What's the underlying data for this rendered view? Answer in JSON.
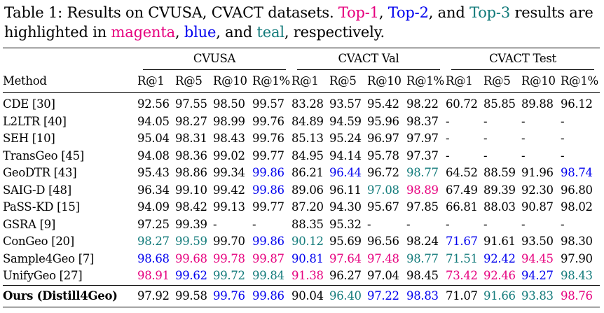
{
  "caption": {
    "prefix": "Table 1: Results on CVUSA, CVACT datasets.",
    "top1": "Top-1",
    "sep1": ",",
    "top2": "Top-2",
    "sep2": ", and",
    "top3": "Top-3",
    "mid": "results are highlighted in",
    "w_magenta": "magenta",
    "sep3": ",",
    "w_blue": "blue",
    "sep4": ", and",
    "w_teal": "teal",
    "suffix": ", respectively."
  },
  "colors": {
    "magenta": "#e6007e",
    "blue": "#0000ee",
    "teal": "#137b7b"
  },
  "groups": [
    "CVUSA",
    "CVACT Val",
    "CVACT Test"
  ],
  "columns": [
    "Method",
    "R@1",
    "R@5",
    "R@10",
    "R@1%",
    "R@1",
    "R@5",
    "R@10",
    "R@1%",
    "R@1",
    "R@5",
    "R@10",
    "R@1%"
  ],
  "rows": [
    {
      "method": "CDE [30]",
      "cells": [
        {
          "v": "92.56"
        },
        {
          "v": "97.55"
        },
        {
          "v": "98.50"
        },
        {
          "v": "99.57"
        },
        {
          "v": "83.28"
        },
        {
          "v": "93.57"
        },
        {
          "v": "95.42"
        },
        {
          "v": "98.22"
        },
        {
          "v": "60.72"
        },
        {
          "v": "85.85"
        },
        {
          "v": "89.88"
        },
        {
          "v": "96.12"
        }
      ]
    },
    {
      "method": "L2LTR [40]",
      "cells": [
        {
          "v": "94.05"
        },
        {
          "v": "98.27"
        },
        {
          "v": "98.99"
        },
        {
          "v": "99.76"
        },
        {
          "v": "84.89"
        },
        {
          "v": "94.59"
        },
        {
          "v": "95.96"
        },
        {
          "v": "98.37"
        },
        {
          "v": "-"
        },
        {
          "v": "-"
        },
        {
          "v": "-"
        },
        {
          "v": "-"
        }
      ]
    },
    {
      "method": "SEH [10]",
      "cells": [
        {
          "v": "95.04"
        },
        {
          "v": "98.31"
        },
        {
          "v": "98.43"
        },
        {
          "v": "99.76"
        },
        {
          "v": "85.13"
        },
        {
          "v": "95.24"
        },
        {
          "v": "96.97"
        },
        {
          "v": "97.97"
        },
        {
          "v": "-"
        },
        {
          "v": "-"
        },
        {
          "v": "-"
        },
        {
          "v": "-"
        }
      ]
    },
    {
      "method": "TransGeo [45]",
      "cells": [
        {
          "v": "94.08"
        },
        {
          "v": "98.36"
        },
        {
          "v": "99.02"
        },
        {
          "v": "99.77"
        },
        {
          "v": "84.95"
        },
        {
          "v": "94.14"
        },
        {
          "v": "95.78"
        },
        {
          "v": "97.37"
        },
        {
          "v": "-"
        },
        {
          "v": "-"
        },
        {
          "v": "-"
        },
        {
          "v": "-"
        }
      ]
    },
    {
      "method": "GeoDTR [43]",
      "cells": [
        {
          "v": "95.43"
        },
        {
          "v": "98.86"
        },
        {
          "v": "99.34"
        },
        {
          "v": "99.86",
          "c": "blue"
        },
        {
          "v": "86.21"
        },
        {
          "v": "96.44",
          "c": "blue"
        },
        {
          "v": "96.72"
        },
        {
          "v": "98.77",
          "c": "teal"
        },
        {
          "v": "64.52"
        },
        {
          "v": "88.59"
        },
        {
          "v": "91.96"
        },
        {
          "v": "98.74",
          "c": "blue"
        }
      ]
    },
    {
      "method": "SAIG-D [48]",
      "cells": [
        {
          "v": "96.34"
        },
        {
          "v": "99.10"
        },
        {
          "v": "99.42"
        },
        {
          "v": "99.86",
          "c": "blue"
        },
        {
          "v": "89.06"
        },
        {
          "v": "96.11"
        },
        {
          "v": "97.08",
          "c": "teal"
        },
        {
          "v": "98.89",
          "c": "magenta"
        },
        {
          "v": "67.49"
        },
        {
          "v": "89.39"
        },
        {
          "v": "92.30"
        },
        {
          "v": "96.80"
        }
      ]
    },
    {
      "method": "PaSS-KD [15]",
      "cells": [
        {
          "v": "94.09"
        },
        {
          "v": "98.42"
        },
        {
          "v": "99.13"
        },
        {
          "v": "99.77"
        },
        {
          "v": "87.20"
        },
        {
          "v": "94.30"
        },
        {
          "v": "95.67"
        },
        {
          "v": "97.85"
        },
        {
          "v": "66.81"
        },
        {
          "v": "88.03"
        },
        {
          "v": "90.87"
        },
        {
          "v": "98.02"
        }
      ]
    },
    {
      "method": "GSRA [9]",
      "cells": [
        {
          "v": "97.25"
        },
        {
          "v": "99.39"
        },
        {
          "v": "-"
        },
        {
          "v": "-"
        },
        {
          "v": "88.35"
        },
        {
          "v": "95.32"
        },
        {
          "v": "-"
        },
        {
          "v": "-"
        },
        {
          "v": "-"
        },
        {
          "v": "-"
        },
        {
          "v": "-"
        },
        {
          "v": "-"
        }
      ]
    },
    {
      "method": "ConGeo [20]",
      "cells": [
        {
          "v": "98.27",
          "c": "teal"
        },
        {
          "v": "99.59",
          "c": "teal"
        },
        {
          "v": "99.70"
        },
        {
          "v": "99.86",
          "c": "blue"
        },
        {
          "v": "90.12",
          "c": "teal"
        },
        {
          "v": "95.69"
        },
        {
          "v": "96.56"
        },
        {
          "v": "98.24"
        },
        {
          "v": "71.67",
          "c": "blue"
        },
        {
          "v": "91.61"
        },
        {
          "v": "93.50"
        },
        {
          "v": "98.30"
        }
      ]
    },
    {
      "method": "Sample4Geo [7]",
      "cells": [
        {
          "v": "98.68",
          "c": "blue"
        },
        {
          "v": "99.68",
          "c": "magenta"
        },
        {
          "v": "99.78",
          "c": "magenta"
        },
        {
          "v": "99.87",
          "c": "magenta"
        },
        {
          "v": "90.81",
          "c": "blue"
        },
        {
          "v": "97.64",
          "c": "magenta"
        },
        {
          "v": "97.48",
          "c": "magenta"
        },
        {
          "v": "98.77",
          "c": "teal"
        },
        {
          "v": "71.51",
          "c": "teal"
        },
        {
          "v": "92.42",
          "c": "blue"
        },
        {
          "v": "94.45",
          "c": "magenta"
        },
        {
          "v": "97.90"
        }
      ]
    },
    {
      "method": "UnifyGeo [27]",
      "cells": [
        {
          "v": "98.91",
          "c": "magenta"
        },
        {
          "v": "99.62",
          "c": "blue"
        },
        {
          "v": "99.72",
          "c": "teal"
        },
        {
          "v": "99.84",
          "c": "teal"
        },
        {
          "v": "91.38",
          "c": "magenta"
        },
        {
          "v": "96.27"
        },
        {
          "v": "97.04"
        },
        {
          "v": "98.45"
        },
        {
          "v": "73.42",
          "c": "magenta"
        },
        {
          "v": "92.46",
          "c": "magenta"
        },
        {
          "v": "94.27",
          "c": "blue"
        },
        {
          "v": "98.43",
          "c": "teal"
        }
      ]
    }
  ],
  "ours": {
    "method": "Ours (Distill4Geo)",
    "cells": [
      {
        "v": "97.92"
      },
      {
        "v": "99.58"
      },
      {
        "v": "99.76",
        "c": "blue"
      },
      {
        "v": "99.86",
        "c": "blue"
      },
      {
        "v": "90.04"
      },
      {
        "v": "96.40",
        "c": "teal"
      },
      {
        "v": "97.22",
        "c": "blue"
      },
      {
        "v": "98.83",
        "c": "blue"
      },
      {
        "v": "71.07"
      },
      {
        "v": "91.66",
        "c": "teal"
      },
      {
        "v": "93.83",
        "c": "teal"
      },
      {
        "v": "98.76",
        "c": "magenta"
      }
    ]
  }
}
